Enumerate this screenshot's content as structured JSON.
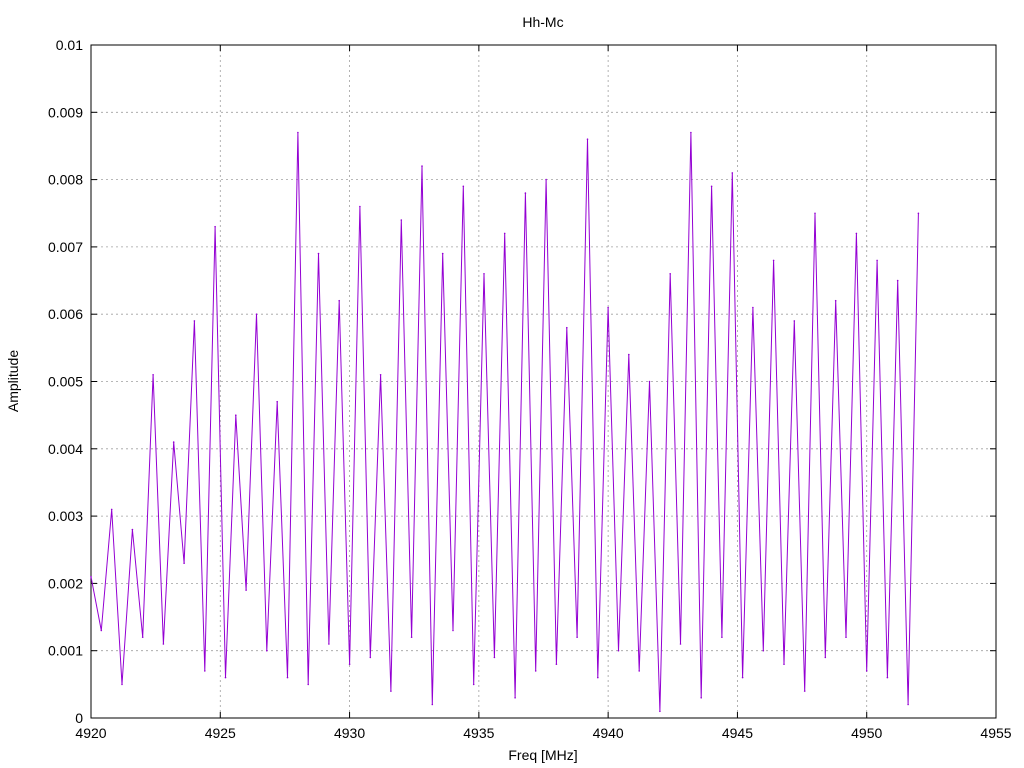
{
  "chart_data": {
    "type": "line",
    "title": "Hh-Mc",
    "xlabel": "Freq [MHz]",
    "ylabel": "Amplitude",
    "xlim": [
      4920,
      4955
    ],
    "ylim": [
      0,
      0.01
    ],
    "xticks": [
      "4920",
      "4925",
      "4930",
      "4935",
      "4940",
      "4945",
      "4950",
      "4955"
    ],
    "yticks": [
      "0",
      "0.001",
      "0.002",
      "0.003",
      "0.004",
      "0.005",
      "0.006",
      "0.007",
      "0.008",
      "0.009",
      "0.01"
    ],
    "grid": true,
    "series_color": "#9400d3",
    "series": [
      {
        "x": [
          4920.0,
          4920.4,
          4920.8,
          4921.2,
          4921.6,
          4922.0,
          4922.4,
          4922.8,
          4923.2,
          4923.6,
          4924.0,
          4924.4,
          4924.8,
          4925.2,
          4925.6,
          4926.0,
          4926.4,
          4926.8,
          4927.2,
          4927.6,
          4928.0,
          4928.4,
          4928.8,
          4929.2,
          4929.6,
          4930.0,
          4930.4,
          4930.8,
          4931.2,
          4931.6,
          4932.0,
          4932.4,
          4932.8,
          4933.2,
          4933.6,
          4934.0,
          4934.4,
          4934.8,
          4935.2,
          4935.6,
          4936.0,
          4936.4,
          4936.8,
          4937.2,
          4937.6,
          4938.0,
          4938.4,
          4938.8,
          4939.2,
          4939.6,
          4940.0,
          4940.4,
          4940.8,
          4941.2,
          4941.6,
          4942.0,
          4942.4,
          4942.8,
          4943.2,
          4943.6,
          4944.0,
          4944.4,
          4944.8,
          4945.2,
          4945.6,
          4946.0,
          4946.4,
          4946.8,
          4947.2,
          4947.6,
          4948.0,
          4948.4,
          4948.8,
          4949.2,
          4949.6,
          4950.0,
          4950.4,
          4950.8,
          4951.2,
          4951.6,
          4952.0
        ],
        "y": [
          0.0021,
          0.0013,
          0.0031,
          0.0005,
          0.0028,
          0.0012,
          0.0051,
          0.0011,
          0.0041,
          0.0023,
          0.0059,
          0.0007,
          0.0073,
          0.0006,
          0.0045,
          0.0019,
          0.006,
          0.001,
          0.0047,
          0.0006,
          0.0087,
          0.0005,
          0.0069,
          0.0011,
          0.0062,
          0.0008,
          0.0076,
          0.0009,
          0.0051,
          0.0004,
          0.0074,
          0.0012,
          0.0082,
          0.0002,
          0.0069,
          0.0013,
          0.0079,
          0.0005,
          0.0066,
          0.0009,
          0.0072,
          0.0003,
          0.0078,
          0.0007,
          0.008,
          0.0008,
          0.0058,
          0.0012,
          0.0086,
          0.0006,
          0.0061,
          0.001,
          0.0054,
          0.0007,
          0.005,
          0.0001,
          0.0066,
          0.0011,
          0.0087,
          0.0003,
          0.0079,
          0.0012,
          0.0081,
          0.0006,
          0.0061,
          0.001,
          0.0068,
          0.0008,
          0.0059,
          0.0004,
          0.0075,
          0.0009,
          0.0062,
          0.0012,
          0.0072,
          0.0007,
          0.0068,
          0.0006,
          0.0065,
          0.0002,
          0.0075
        ]
      }
    ]
  }
}
